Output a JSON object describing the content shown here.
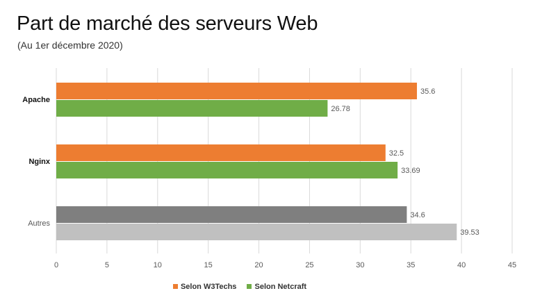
{
  "chart_data": {
    "type": "bar",
    "orientation": "horizontal",
    "title": "Part de marché des serveurs Web",
    "subtitle": "(Au 1er décembre 2020)",
    "categories": [
      "Apache",
      "Nginx",
      "Autres"
    ],
    "series": [
      {
        "name": "Selon W3Techs",
        "values": [
          35.6,
          32.5,
          34.6
        ],
        "color": "#ED7D31",
        "other_color": "#7F7F7F"
      },
      {
        "name": "Selon Netcraft",
        "values": [
          26.78,
          33.69,
          39.53
        ],
        "color": "#70AD47",
        "other_color": "#C0C0C0"
      }
    ],
    "value_labels": [
      [
        "35.6",
        "32.5",
        "34.6"
      ],
      [
        "26.78",
        "33.69",
        "39.53"
      ]
    ],
    "xlim": [
      0,
      45
    ],
    "xticks": [
      "0",
      "5",
      "10",
      "15",
      "20",
      "25",
      "30",
      "35",
      "40",
      "45"
    ],
    "grid": true,
    "legend_position": "bottom"
  }
}
